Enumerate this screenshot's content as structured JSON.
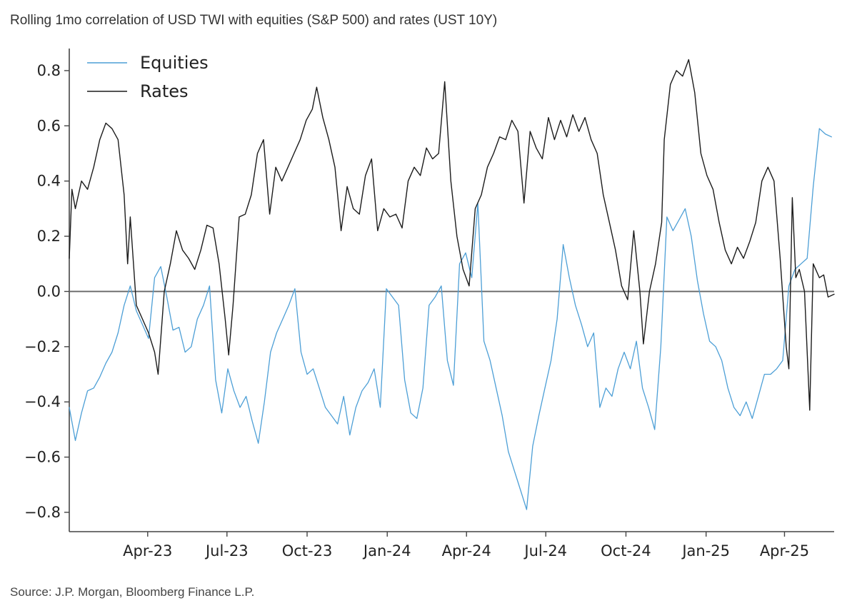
{
  "header": {
    "title": "Rolling 1mo correlation of USD TWI with equities (S&P 500) and rates (UST 10Y)"
  },
  "footer": {
    "source": "Source: J.P. Morgan, Bloomberg Finance L.P."
  },
  "colors": {
    "equities": "#4d9fd6",
    "rates": "#1c1c1c",
    "zero_line": "#666666",
    "axis": "#444444"
  },
  "chart_data": {
    "type": "line",
    "title": "Rolling 1mo correlation of USD TWI with equities (S&P 500) and rates (UST 10Y)",
    "xlabel": "",
    "ylabel": "",
    "x_range": [
      "2023-01-01",
      "2025-05-28"
    ],
    "ylim": [
      -0.87,
      0.88
    ],
    "y_ticks": [
      -0.8,
      -0.6,
      -0.4,
      -0.2,
      0.0,
      0.2,
      0.4,
      0.6,
      0.8
    ],
    "y_tick_labels": [
      "−0.8",
      "−0.6",
      "−0.4",
      "−0.2",
      "0.0",
      "0.2",
      "0.4",
      "0.6",
      "0.8"
    ],
    "x_ticks": [
      "2023-04-01",
      "2023-07-01",
      "2023-10-01",
      "2024-01-01",
      "2024-04-01",
      "2024-07-01",
      "2024-10-01",
      "2025-01-01",
      "2025-04-01"
    ],
    "x_tick_labels": [
      "Apr-23",
      "Jul-23",
      "Oct-23",
      "Jan-24",
      "Apr-24",
      "Jul-24",
      "Oct-24",
      "Jan-25",
      "Apr-25"
    ],
    "reference_line_y": 0,
    "grid": false,
    "legend": {
      "placement": "top-left",
      "entries": [
        "Equities",
        "Rates"
      ]
    },
    "series": [
      {
        "name": "Equities",
        "points": [
          [
            "2023-01-01",
            -0.42
          ],
          [
            "2023-01-08",
            -0.54
          ],
          [
            "2023-01-15",
            -0.44
          ],
          [
            "2023-01-22",
            -0.36
          ],
          [
            "2023-01-29",
            -0.35
          ],
          [
            "2023-02-05",
            -0.31
          ],
          [
            "2023-02-12",
            -0.26
          ],
          [
            "2023-02-19",
            -0.22
          ],
          [
            "2023-02-26",
            -0.15
          ],
          [
            "2023-03-05",
            -0.05
          ],
          [
            "2023-03-12",
            0.02
          ],
          [
            "2023-03-19",
            -0.07
          ],
          [
            "2023-03-26",
            -0.12
          ],
          [
            "2023-04-02",
            -0.17
          ],
          [
            "2023-04-09",
            0.05
          ],
          [
            "2023-04-16",
            0.09
          ],
          [
            "2023-04-23",
            -0.02
          ],
          [
            "2023-04-30",
            -0.14
          ],
          [
            "2023-05-07",
            -0.13
          ],
          [
            "2023-05-14",
            -0.22
          ],
          [
            "2023-05-21",
            -0.2
          ],
          [
            "2023-05-28",
            -0.1
          ],
          [
            "2023-06-04",
            -0.05
          ],
          [
            "2023-06-11",
            0.02
          ],
          [
            "2023-06-18",
            -0.32
          ],
          [
            "2023-06-25",
            -0.44
          ],
          [
            "2023-07-02",
            -0.28
          ],
          [
            "2023-07-09",
            -0.36
          ],
          [
            "2023-07-16",
            -0.42
          ],
          [
            "2023-07-23",
            -0.38
          ],
          [
            "2023-07-30",
            -0.47
          ],
          [
            "2023-08-06",
            -0.55
          ],
          [
            "2023-08-13",
            -0.4
          ],
          [
            "2023-08-20",
            -0.22
          ],
          [
            "2023-08-27",
            -0.15
          ],
          [
            "2023-09-03",
            -0.1
          ],
          [
            "2023-09-10",
            -0.05
          ],
          [
            "2023-09-17",
            0.01
          ],
          [
            "2023-09-24",
            -0.22
          ],
          [
            "2023-10-01",
            -0.3
          ],
          [
            "2023-10-08",
            -0.28
          ],
          [
            "2023-10-15",
            -0.35
          ],
          [
            "2023-10-22",
            -0.42
          ],
          [
            "2023-10-29",
            -0.45
          ],
          [
            "2023-11-05",
            -0.48
          ],
          [
            "2023-11-12",
            -0.38
          ],
          [
            "2023-11-19",
            -0.52
          ],
          [
            "2023-11-26",
            -0.42
          ],
          [
            "2023-12-03",
            -0.36
          ],
          [
            "2023-12-10",
            -0.33
          ],
          [
            "2023-12-17",
            -0.28
          ],
          [
            "2023-12-24",
            -0.42
          ],
          [
            "2023-12-31",
            0.01
          ],
          [
            "2024-01-07",
            -0.02
          ],
          [
            "2024-01-14",
            -0.05
          ],
          [
            "2024-01-21",
            -0.32
          ],
          [
            "2024-01-28",
            -0.44
          ],
          [
            "2024-02-04",
            -0.46
          ],
          [
            "2024-02-11",
            -0.35
          ],
          [
            "2024-02-18",
            -0.05
          ],
          [
            "2024-02-25",
            -0.02
          ],
          [
            "2024-03-03",
            0.02
          ],
          [
            "2024-03-10",
            -0.25
          ],
          [
            "2024-03-17",
            -0.34
          ],
          [
            "2024-03-24",
            0.1
          ],
          [
            "2024-03-31",
            0.14
          ],
          [
            "2024-04-07",
            0.05
          ],
          [
            "2024-04-14",
            0.32
          ],
          [
            "2024-04-21",
            -0.18
          ],
          [
            "2024-04-28",
            -0.25
          ],
          [
            "2024-05-05",
            -0.35
          ],
          [
            "2024-05-12",
            -0.45
          ],
          [
            "2024-05-19",
            -0.58
          ],
          [
            "2024-05-26",
            -0.65
          ],
          [
            "2024-06-02",
            -0.72
          ],
          [
            "2024-06-09",
            -0.79
          ],
          [
            "2024-06-16",
            -0.56
          ],
          [
            "2024-06-23",
            -0.45
          ],
          [
            "2024-06-30",
            -0.35
          ],
          [
            "2024-07-07",
            -0.25
          ],
          [
            "2024-07-14",
            -0.1
          ],
          [
            "2024-07-21",
            0.17
          ],
          [
            "2024-07-28",
            0.05
          ],
          [
            "2024-08-04",
            -0.05
          ],
          [
            "2024-08-11",
            -0.12
          ],
          [
            "2024-08-18",
            -0.2
          ],
          [
            "2024-08-25",
            -0.15
          ],
          [
            "2024-09-01",
            -0.42
          ],
          [
            "2024-09-08",
            -0.35
          ],
          [
            "2024-09-15",
            -0.38
          ],
          [
            "2024-09-22",
            -0.28
          ],
          [
            "2024-09-29",
            -0.22
          ],
          [
            "2024-10-06",
            -0.28
          ],
          [
            "2024-10-13",
            -0.18
          ],
          [
            "2024-10-20",
            -0.35
          ],
          [
            "2024-10-27",
            -0.42
          ],
          [
            "2024-11-03",
            -0.5
          ],
          [
            "2024-11-10",
            -0.2
          ],
          [
            "2024-11-17",
            0.27
          ],
          [
            "2024-11-24",
            0.22
          ],
          [
            "2024-12-01",
            0.26
          ],
          [
            "2024-12-08",
            0.3
          ],
          [
            "2024-12-15",
            0.2
          ],
          [
            "2024-12-22",
            0.04
          ],
          [
            "2024-12-29",
            -0.08
          ],
          [
            "2025-01-05",
            -0.18
          ],
          [
            "2025-01-12",
            -0.2
          ],
          [
            "2025-01-19",
            -0.25
          ],
          [
            "2025-01-26",
            -0.35
          ],
          [
            "2025-02-02",
            -0.42
          ],
          [
            "2025-02-09",
            -0.45
          ],
          [
            "2025-02-16",
            -0.4
          ],
          [
            "2025-02-23",
            -0.46
          ],
          [
            "2025-03-02",
            -0.38
          ],
          [
            "2025-03-09",
            -0.3
          ],
          [
            "2025-03-16",
            -0.3
          ],
          [
            "2025-03-23",
            -0.28
          ],
          [
            "2025-03-30",
            -0.25
          ],
          [
            "2025-04-06",
            0.02
          ],
          [
            "2025-04-13",
            0.08
          ],
          [
            "2025-04-20",
            0.1
          ],
          [
            "2025-04-27",
            0.12
          ],
          [
            "2025-05-04",
            0.38
          ],
          [
            "2025-05-11",
            0.59
          ],
          [
            "2025-05-18",
            0.57
          ],
          [
            "2025-05-25",
            0.56
          ]
        ]
      },
      {
        "name": "Rates",
        "points": [
          [
            "2023-01-01",
            0.12
          ],
          [
            "2023-01-04",
            0.37
          ],
          [
            "2023-01-08",
            0.3
          ],
          [
            "2023-01-15",
            0.4
          ],
          [
            "2023-01-22",
            0.37
          ],
          [
            "2023-01-29",
            0.45
          ],
          [
            "2023-02-05",
            0.55
          ],
          [
            "2023-02-12",
            0.61
          ],
          [
            "2023-02-19",
            0.59
          ],
          [
            "2023-02-26",
            0.55
          ],
          [
            "2023-03-05",
            0.35
          ],
          [
            "2023-03-09",
            0.1
          ],
          [
            "2023-03-12",
            0.27
          ],
          [
            "2023-03-19",
            -0.05
          ],
          [
            "2023-03-26",
            -0.1
          ],
          [
            "2023-04-02",
            -0.15
          ],
          [
            "2023-04-09",
            -0.22
          ],
          [
            "2023-04-13",
            -0.3
          ],
          [
            "2023-04-20",
            0.0
          ],
          [
            "2023-04-27",
            0.1
          ],
          [
            "2023-05-04",
            0.22
          ],
          [
            "2023-05-11",
            0.15
          ],
          [
            "2023-05-18",
            0.12
          ],
          [
            "2023-05-25",
            0.08
          ],
          [
            "2023-06-01",
            0.15
          ],
          [
            "2023-06-08",
            0.24
          ],
          [
            "2023-06-15",
            0.23
          ],
          [
            "2023-06-22",
            0.1
          ],
          [
            "2023-06-29",
            -0.1
          ],
          [
            "2023-07-03",
            -0.23
          ],
          [
            "2023-07-08",
            -0.05
          ],
          [
            "2023-07-15",
            0.27
          ],
          [
            "2023-07-22",
            0.28
          ],
          [
            "2023-07-29",
            0.35
          ],
          [
            "2023-08-05",
            0.5
          ],
          [
            "2023-08-12",
            0.55
          ],
          [
            "2023-08-19",
            0.28
          ],
          [
            "2023-08-26",
            0.45
          ],
          [
            "2023-09-02",
            0.4
          ],
          [
            "2023-09-09",
            0.45
          ],
          [
            "2023-09-16",
            0.5
          ],
          [
            "2023-09-23",
            0.55
          ],
          [
            "2023-09-30",
            0.62
          ],
          [
            "2023-10-07",
            0.66
          ],
          [
            "2023-10-12",
            0.74
          ],
          [
            "2023-10-19",
            0.63
          ],
          [
            "2023-10-26",
            0.55
          ],
          [
            "2023-11-02",
            0.45
          ],
          [
            "2023-11-09",
            0.22
          ],
          [
            "2023-11-16",
            0.38
          ],
          [
            "2023-11-23",
            0.3
          ],
          [
            "2023-11-30",
            0.28
          ],
          [
            "2023-12-07",
            0.42
          ],
          [
            "2023-12-14",
            0.48
          ],
          [
            "2023-12-21",
            0.22
          ],
          [
            "2023-12-28",
            0.3
          ],
          [
            "2024-01-04",
            0.27
          ],
          [
            "2024-01-11",
            0.28
          ],
          [
            "2024-01-18",
            0.23
          ],
          [
            "2024-01-25",
            0.4
          ],
          [
            "2024-02-01",
            0.45
          ],
          [
            "2024-02-08",
            0.42
          ],
          [
            "2024-02-15",
            0.52
          ],
          [
            "2024-02-22",
            0.48
          ],
          [
            "2024-02-29",
            0.5
          ],
          [
            "2024-03-07",
            0.76
          ],
          [
            "2024-03-14",
            0.4
          ],
          [
            "2024-03-21",
            0.2
          ],
          [
            "2024-03-28",
            0.08
          ],
          [
            "2024-04-04",
            0.02
          ],
          [
            "2024-04-11",
            0.3
          ],
          [
            "2024-04-18",
            0.35
          ],
          [
            "2024-04-25",
            0.45
          ],
          [
            "2024-05-02",
            0.5
          ],
          [
            "2024-05-09",
            0.56
          ],
          [
            "2024-05-16",
            0.55
          ],
          [
            "2024-05-23",
            0.62
          ],
          [
            "2024-05-30",
            0.58
          ],
          [
            "2024-06-06",
            0.32
          ],
          [
            "2024-06-13",
            0.58
          ],
          [
            "2024-06-20",
            0.52
          ],
          [
            "2024-06-27",
            0.48
          ],
          [
            "2024-07-04",
            0.63
          ],
          [
            "2024-07-11",
            0.55
          ],
          [
            "2024-07-18",
            0.62
          ],
          [
            "2024-07-25",
            0.56
          ],
          [
            "2024-08-01",
            0.64
          ],
          [
            "2024-08-08",
            0.58
          ],
          [
            "2024-08-15",
            0.63
          ],
          [
            "2024-08-22",
            0.55
          ],
          [
            "2024-08-29",
            0.5
          ],
          [
            "2024-09-05",
            0.35
          ],
          [
            "2024-09-12",
            0.25
          ],
          [
            "2024-09-19",
            0.15
          ],
          [
            "2024-09-26",
            0.02
          ],
          [
            "2024-10-03",
            -0.03
          ],
          [
            "2024-10-10",
            0.22
          ],
          [
            "2024-10-17",
            0.0
          ],
          [
            "2024-10-21",
            -0.19
          ],
          [
            "2024-10-28",
            0.0
          ],
          [
            "2024-11-04",
            0.1
          ],
          [
            "2024-11-11",
            0.25
          ],
          [
            "2024-11-14",
            0.55
          ],
          [
            "2024-11-21",
            0.75
          ],
          [
            "2024-11-28",
            0.8
          ],
          [
            "2024-12-05",
            0.78
          ],
          [
            "2024-12-12",
            0.84
          ],
          [
            "2024-12-19",
            0.72
          ],
          [
            "2024-12-26",
            0.5
          ],
          [
            "2025-01-02",
            0.42
          ],
          [
            "2025-01-09",
            0.37
          ],
          [
            "2025-01-16",
            0.25
          ],
          [
            "2025-01-23",
            0.15
          ],
          [
            "2025-01-30",
            0.1
          ],
          [
            "2025-02-06",
            0.16
          ],
          [
            "2025-02-13",
            0.12
          ],
          [
            "2025-02-20",
            0.18
          ],
          [
            "2025-02-27",
            0.25
          ],
          [
            "2025-03-06",
            0.4
          ],
          [
            "2025-03-13",
            0.45
          ],
          [
            "2025-03-20",
            0.4
          ],
          [
            "2025-03-27",
            0.12
          ],
          [
            "2025-04-03",
            -0.2
          ],
          [
            "2025-04-06",
            -0.28
          ],
          [
            "2025-04-10",
            0.34
          ],
          [
            "2025-04-14",
            0.05
          ],
          [
            "2025-04-18",
            0.08
          ],
          [
            "2025-04-24",
            0.0
          ],
          [
            "2025-04-30",
            -0.43
          ],
          [
            "2025-05-04",
            0.1
          ],
          [
            "2025-05-11",
            0.05
          ],
          [
            "2025-05-16",
            0.06
          ],
          [
            "2025-05-21",
            -0.02
          ],
          [
            "2025-05-28",
            -0.01
          ]
        ]
      }
    ]
  }
}
